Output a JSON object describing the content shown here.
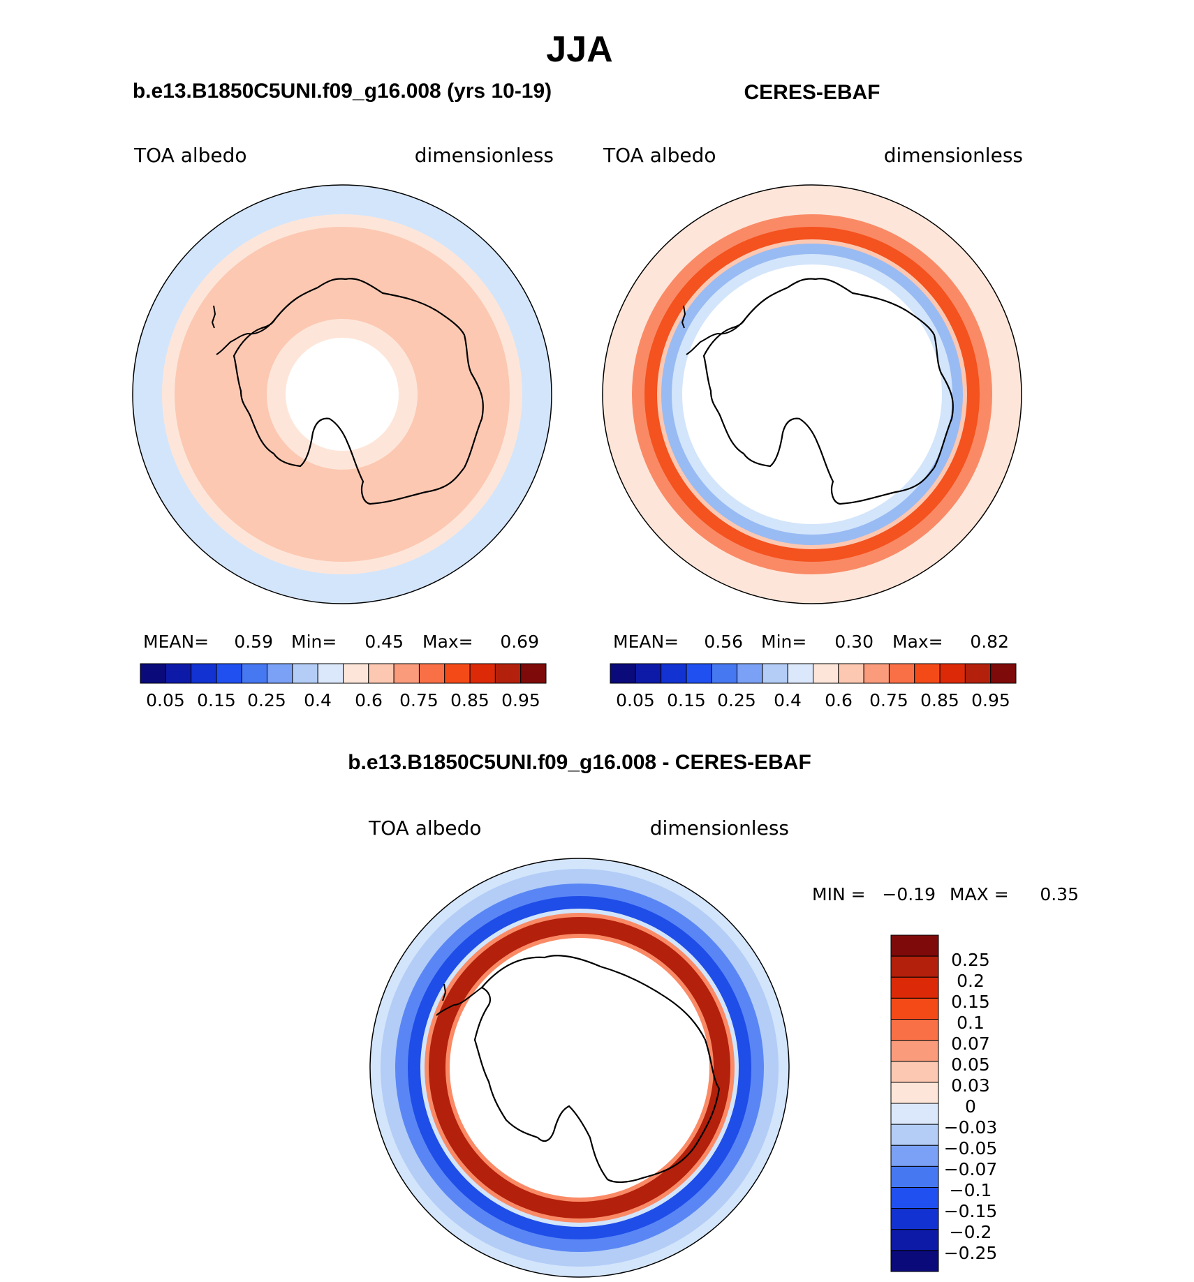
{
  "title": "JJA",
  "chart_data": [
    {
      "type": "heatmap",
      "projection": "south-polar-stereographic",
      "title": "b.e13.B1850C5UNI.f09_g16.008 (yrs 10-19)",
      "left_label": "TOA albedo",
      "right_label": "dimensionless",
      "stats": {
        "mean_label": "MEAN=",
        "mean": "0.59",
        "min_label": "Min=",
        "min": "0.45",
        "max_label": "Max=",
        "max": "0.69"
      },
      "colorbar_labels": [
        "0.05",
        "0.15",
        "0.25",
        "0.4",
        "0.6",
        "0.75",
        "0.85",
        "0.95"
      ],
      "field_bands": [
        {
          "r_max": 0.27,
          "color": "#ffffff"
        },
        {
          "r_max": 0.36,
          "color": "#fde6d9"
        },
        {
          "r_max": 0.8,
          "color": "#fcc8b2"
        },
        {
          "r_max": 0.86,
          "color": "#fde6d9"
        },
        {
          "r_max": 1.0,
          "color": "#d3e5fb"
        }
      ]
    },
    {
      "type": "heatmap",
      "projection": "south-polar-stereographic",
      "title": "CERES-EBAF",
      "left_label": "TOA albedo",
      "right_label": "dimensionless",
      "stats": {
        "mean_label": "MEAN=",
        "mean": "0.56",
        "min_label": "Min=",
        "min": "0.30",
        "max_label": "Max=",
        "max": "0.82"
      },
      "colorbar_labels": [
        "0.05",
        "0.15",
        "0.25",
        "0.4",
        "0.6",
        "0.75",
        "0.85",
        "0.95"
      ],
      "field_bands": [
        {
          "r_max": 0.62,
          "color": "#ffffff"
        },
        {
          "r_max": 0.67,
          "color": "#d3e5fb"
        },
        {
          "r_max": 0.72,
          "color": "#99bbf3"
        },
        {
          "r_max": 0.74,
          "color": "#fcc8b2"
        },
        {
          "r_max": 0.8,
          "color": "#f4521e"
        },
        {
          "r_max": 0.86,
          "color": "#fa8a66"
        },
        {
          "r_max": 0.93,
          "color": "#fde6d9"
        },
        {
          "r_max": 1.0,
          "color": "#fde6d9"
        }
      ]
    },
    {
      "type": "heatmap",
      "projection": "south-polar-stereographic",
      "title": "b.e13.B1850C5UNI.f09_g16.008 - CERES-EBAF",
      "left_label": "TOA albedo",
      "right_label": "dimensionless",
      "stats": {
        "min_label": "MIN =",
        "min": "−0.19",
        "max_label": "MAX =",
        "max": "0.35"
      },
      "colorbar_labels": [
        "0.25",
        "0.2",
        "0.15",
        "0.1",
        "0.07",
        "0.05",
        "0.03",
        "0",
        "−0.03",
        "−0.05",
        "−0.07",
        "−0.1",
        "−0.15",
        "−0.2",
        "−0.25"
      ],
      "field_bands": [
        {
          "r_max": 0.62,
          "color": "#ffffff"
        },
        {
          "r_max": 0.64,
          "color": "#fa8a66"
        },
        {
          "r_max": 0.72,
          "color": "#b3200c"
        },
        {
          "r_max": 0.74,
          "color": "#fa8a66"
        },
        {
          "r_max": 0.76,
          "color": "#d3e5fb"
        },
        {
          "r_max": 0.82,
          "color": "#1f4de8"
        },
        {
          "r_max": 0.88,
          "color": "#5a86f5"
        },
        {
          "r_max": 0.95,
          "color": "#b3cdf7"
        },
        {
          "r_max": 1.0,
          "color": "#d3e5fb"
        }
      ]
    }
  ],
  "colorbar_abs_colors": [
    "#0a0a7a",
    "#0d1aa8",
    "#1332d2",
    "#2050f0",
    "#4678f2",
    "#7aa1f5",
    "#b3cdf7",
    "#dbe8fb",
    "#fde6d9",
    "#fcc8b2",
    "#fa9c7c",
    "#f97046",
    "#f44a18",
    "#dc2a08",
    "#b3200c",
    "#7f0a0a"
  ],
  "colorbar_diff_colors": [
    "#7f0a0a",
    "#b3200c",
    "#dc2a08",
    "#f44a18",
    "#f97046",
    "#fa9c7c",
    "#fcc8b2",
    "#fde6d9",
    "#dbe8fb",
    "#b3cdf7",
    "#7aa1f5",
    "#4678f2",
    "#2050f0",
    "#1332d2",
    "#0d1aa8",
    "#0a0a7a"
  ]
}
